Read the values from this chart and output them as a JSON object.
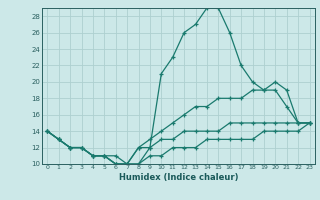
{
  "title": "",
  "xlabel": "Humidex (Indice chaleur)",
  "xlim": [
    -0.5,
    23.5
  ],
  "ylim": [
    10,
    29
  ],
  "yticks": [
    10,
    12,
    14,
    16,
    18,
    20,
    22,
    24,
    26,
    28
  ],
  "xticks": [
    0,
    1,
    2,
    3,
    4,
    5,
    6,
    7,
    8,
    9,
    10,
    11,
    12,
    13,
    14,
    15,
    16,
    17,
    18,
    19,
    20,
    21,
    22,
    23
  ],
  "background_color": "#cce8e8",
  "grid_color": "#aed0d0",
  "line_color": "#1a7a6e",
  "lines": [
    {
      "x": [
        0,
        1,
        2,
        3,
        4,
        5,
        6,
        7,
        8,
        9,
        10,
        11,
        12,
        13,
        14,
        15,
        16,
        17,
        18,
        19,
        20,
        21,
        22,
        23
      ],
      "y": [
        14,
        13,
        12,
        12,
        11,
        11,
        11,
        10,
        10,
        12,
        21,
        23,
        26,
        27,
        29,
        29,
        26,
        22,
        20,
        19,
        19,
        17,
        15,
        15
      ]
    },
    {
      "x": [
        0,
        1,
        2,
        3,
        4,
        5,
        6,
        7,
        8,
        9,
        10,
        11,
        12,
        13,
        14,
        15,
        16,
        17,
        18,
        19,
        20,
        21,
        22,
        23
      ],
      "y": [
        14,
        13,
        12,
        12,
        11,
        11,
        10,
        10,
        12,
        13,
        14,
        15,
        16,
        17,
        17,
        18,
        18,
        18,
        19,
        19,
        20,
        19,
        15,
        15
      ]
    },
    {
      "x": [
        0,
        1,
        2,
        3,
        4,
        5,
        6,
        7,
        8,
        9,
        10,
        11,
        12,
        13,
        14,
        15,
        16,
        17,
        18,
        19,
        20,
        21,
        22,
        23
      ],
      "y": [
        14,
        13,
        12,
        12,
        11,
        11,
        10,
        10,
        12,
        12,
        13,
        13,
        14,
        14,
        14,
        14,
        15,
        15,
        15,
        15,
        15,
        15,
        15,
        15
      ]
    },
    {
      "x": [
        0,
        1,
        2,
        3,
        4,
        5,
        6,
        7,
        8,
        9,
        10,
        11,
        12,
        13,
        14,
        15,
        16,
        17,
        18,
        19,
        20,
        21,
        22,
        23
      ],
      "y": [
        14,
        13,
        12,
        12,
        11,
        11,
        10,
        10,
        10,
        11,
        11,
        12,
        12,
        12,
        13,
        13,
        13,
        13,
        13,
        14,
        14,
        14,
        14,
        15
      ]
    }
  ]
}
